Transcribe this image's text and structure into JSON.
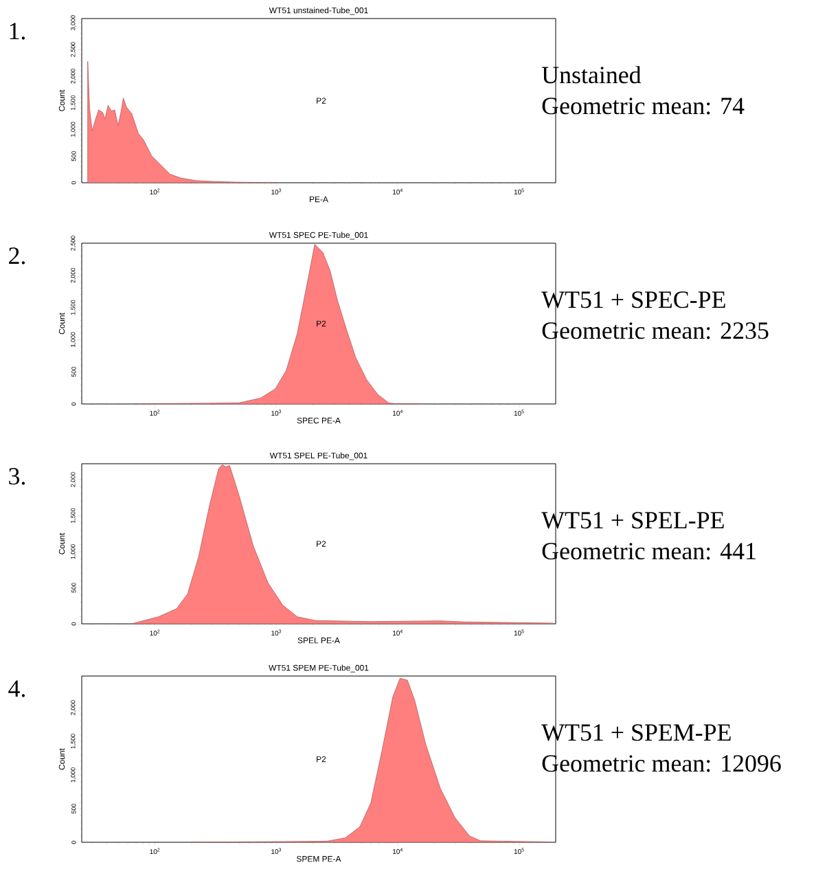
{
  "chart_data": [
    {
      "type": "area",
      "title": "WT51 unstained-Tube_001",
      "xlabel": "PE-A",
      "ylabel": "Count",
      "color": "#ff7f7f",
      "log": "x",
      "x": [
        28.0,
        29.0,
        30.5,
        32.5,
        34.5,
        37.2,
        38.8,
        41.2,
        44.0,
        46.7,
        49.8,
        52.8,
        55.0,
        58.4,
        64.6,
        73.1,
        80.9,
        94.0,
        109,
        133,
        163,
        220,
        297,
        489,
        808,
        1000
      ],
      "values": [
        2277,
        1392,
        974,
        1195,
        1367,
        1318,
        1195,
        1451,
        1343,
        1367,
        1072,
        1343,
        1589,
        1417,
        1294,
        925,
        802,
        507,
        359,
        162,
        89,
        39,
        25,
        10,
        5,
        0
      ],
      "xlim": [
        25,
        200000
      ],
      "ylim": [
        0,
        3080
      ],
      "xticks": [
        {
          "value": 100,
          "label": "10$^{2}$"
        },
        {
          "value": 1000,
          "label": "10$^{3}$"
        },
        {
          "value": 10000,
          "label": "10$^{4}$"
        },
        {
          "value": 100000,
          "label": "10$^{5}$"
        }
      ],
      "yticks": [
        0,
        500,
        {
          "value": 1000,
          "label": "1,000"
        },
        {
          "value": 1500,
          "label": "1,500"
        },
        {
          "value": 2000,
          "label": "2,000"
        },
        {
          "value": 2500,
          "label": "2,500"
        },
        {
          "value": 3000,
          "label": "3,000"
        }
      ],
      "annotations": [
        "1.",
        "P2",
        "Unstained",
        "Geometric mean: 74"
      ]
    },
    {
      "type": "area",
      "title": "WT51 SPEC PE-Tube_001",
      "xlabel": "SPEC PE-A",
      "ylabel": "Count",
      "color": "#ff7f7f",
      "log": "x",
      "x": [
        65.8,
        491,
        743,
        982,
        1208,
        1489,
        1832,
        2075,
        2418,
        2778,
        3191,
        3793,
        4508,
        5546,
        6839,
        8420,
        10000,
        15700
      ],
      "values": [
        0,
        17,
        92,
        235,
        522,
        1095,
        1955,
        2483,
        2357,
        2070,
        1611,
        1153,
        722,
        378,
        149,
        17,
        0,
        0
      ],
      "xlim": [
        25,
        200000
      ],
      "ylim": [
        0,
        2500
      ],
      "xticks": [
        {
          "value": 100,
          "label": "10$^{2}$"
        },
        {
          "value": 1000,
          "label": "10$^{3}$"
        },
        {
          "value": 10000,
          "label": "10$^{4}$"
        },
        {
          "value": 100000,
          "label": "10$^{5}$"
        }
      ],
      "yticks": [
        0,
        500,
        {
          "value": 1000,
          "label": "1,000"
        },
        {
          "value": 1500,
          "label": "1,500"
        },
        {
          "value": 2000,
          "label": "2,000"
        },
        {
          "value": 2500,
          "label": "2,500"
        }
      ],
      "annotations": [
        "2.",
        "P2",
        "WT51 + SPEC-PE",
        "Geometric mean: 2235"
      ]
    },
    {
      "type": "area",
      "title": "WT51 SPEL PE-Tube_001",
      "xlabel": "SPEL PE-A",
      "ylabel": "Count",
      "color": "#ff7f7f",
      "log": "x",
      "x": [
        65.8,
        107,
        151,
        186,
        229,
        282,
        335,
        359,
        385,
        413,
        491,
        647,
        855,
        1128,
        1489,
        2104,
        5957,
        22200,
        36100,
        190000
      ],
      "values": [
        5,
        97,
        210,
        414,
        926,
        1642,
        2153,
        2205,
        2179,
        2194,
        1795,
        1079,
        568,
        261,
        97,
        46,
        31,
        41,
        26,
        10
      ],
      "xlim": [
        25,
        200000
      ],
      "ylim": [
        0,
        2220
      ],
      "xticks": [
        {
          "value": 100,
          "label": "10$^{2}$"
        },
        {
          "value": 1000,
          "label": "10$^{3}$"
        },
        {
          "value": 10000,
          "label": "10$^{4}$"
        },
        {
          "value": 100000,
          "label": "10$^{5}$"
        }
      ],
      "yticks": [
        0,
        500,
        {
          "value": 1000,
          "label": "1,000"
        },
        {
          "value": 1500,
          "label": "1,500"
        },
        {
          "value": 2000,
          "label": "2,000"
        }
      ],
      "annotations": [
        "3.",
        "P2",
        "WT51 + SPEL-PE",
        "Geometric mean: 441"
      ]
    },
    {
      "type": "area",
      "title": "WT51 SPEM PE-Tube_001",
      "xlabel": "SPEM PE-A",
      "ylabel": "Count",
      "color": "#ff7f7f",
      "log": "x",
      "x": [
        200,
        2608,
        3690,
        4873,
        6000,
        7396,
        9120,
        10450,
        12020,
        13800,
        17020,
        22440,
        29650,
        39100,
        48200,
        180000
      ],
      "values": [
        0,
        16,
        65,
        229,
        583,
        1346,
        2163,
        2436,
        2409,
        2109,
        1455,
        801,
        365,
        93,
        22,
        5
      ],
      "xlim": [
        25,
        200000
      ],
      "ylim": [
        0,
        2470
      ],
      "xticks": [
        {
          "value": 100,
          "label": "10$^{2}$"
        },
        {
          "value": 1000,
          "label": "10$^{3}$"
        },
        {
          "value": 10000,
          "label": "10$^{4}$"
        },
        {
          "value": 100000,
          "label": "10$^{5}$"
        }
      ],
      "yticks": [
        0,
        500,
        {
          "value": 1000,
          "label": "1,000"
        },
        {
          "value": 1500,
          "label": "1,500"
        },
        {
          "value": 2000,
          "label": "2,000"
        }
      ],
      "annotations": [
        "4.",
        "P2",
        "WT51 + SPEM-PE",
        "Geometric mean: 12096"
      ]
    }
  ]
}
